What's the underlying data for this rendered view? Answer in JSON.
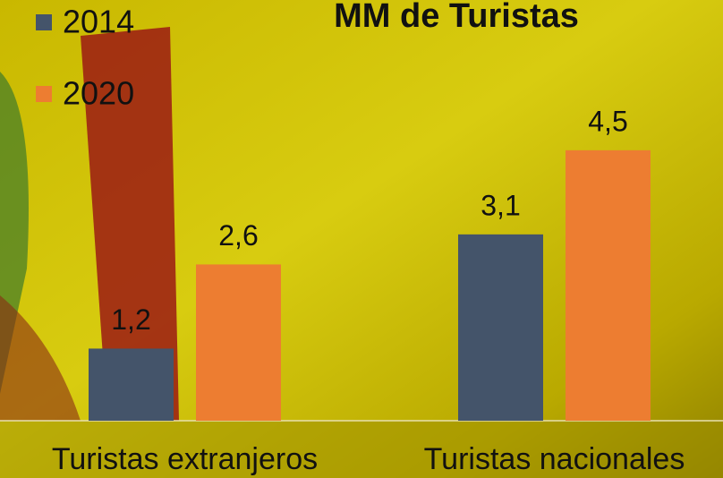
{
  "chart_data": {
    "type": "bar",
    "title": "MM de Turistas",
    "categories": [
      "Turistas extranjeros",
      "Turistas nacionales"
    ],
    "series": [
      {
        "name": "2014",
        "color": "#44546a",
        "values": [
          1.2,
          3.1
        ],
        "value_labels": [
          "1,2",
          "3,1"
        ]
      },
      {
        "name": "2020",
        "color": "#ed7d31",
        "values": [
          2.6,
          4.5
        ],
        "value_labels": [
          "2,6",
          "4,5"
        ]
      }
    ],
    "ylim": [
      0,
      7
    ],
    "legend": "top-left"
  }
}
